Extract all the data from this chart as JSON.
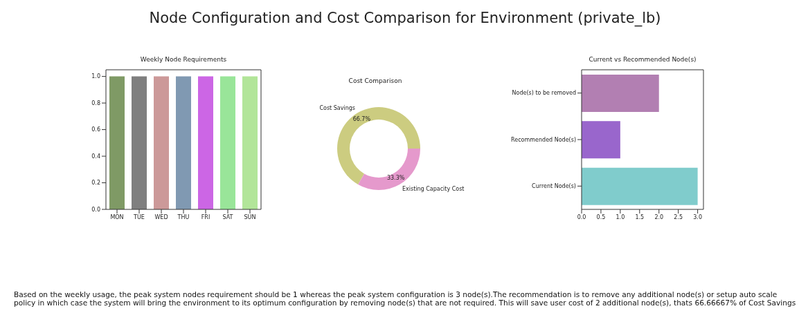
{
  "chart_data": [
    {
      "type": "other",
      "title": "Node Configuration and Cost Comparison for Environment (private_lb)",
      "annotations": [
        "Based on the weekly usage, the peak system nodes requirement should be 1 whereas the peak system configuration is 3 node(s).The recommendation is to remove any additional node(s) or setup auto scale policy in which case the system will bring the environment to its optimum configuration by removing node(s) that are not required. This will save user cost of 2 additional node(s), thats 66.66667% of Cost Savings"
      ]
    },
    {
      "type": "bar",
      "title": "Weekly Node Requirements",
      "categories": [
        "MON",
        "TUE",
        "WED",
        "THU",
        "FRI",
        "SAT",
        "SUN"
      ],
      "values": [
        1,
        1,
        1,
        1,
        1,
        1,
        1
      ],
      "colors": [
        "#7f9a65",
        "#7f7f7f",
        "#cc9999",
        "#8099b2",
        "#cc66e5",
        "#99e599",
        "#b2e599"
      ],
      "ylim": [
        0,
        1.05
      ],
      "yticks": [
        {
          "value": 0,
          "label": "0.0"
        },
        {
          "value": 0.2,
          "label": "0.2"
        },
        {
          "value": 0.4,
          "label": "0.4"
        },
        {
          "value": 0.6,
          "label": "0.6"
        },
        {
          "value": 0.8,
          "label": "0.8"
        },
        {
          "value": 1,
          "label": "1.0"
        }
      ]
    },
    {
      "type": "donut",
      "title": "Cost Comparison",
      "categories": [
        "Cost Savings",
        "Existing Capacity Cost"
      ],
      "values": [
        66.7,
        33.3
      ],
      "colors": [
        "#cccc80",
        "#e599cc"
      ],
      "value_labels": [
        "66.7%",
        "33.3%"
      ]
    },
    {
      "type": "bar",
      "orientation": "horizontal",
      "title": "Current vs Recommended Node(s)",
      "categories": [
        "Node(s) to be removed",
        "Recommended Node(s)",
        "Current Node(s)"
      ],
      "values": [
        2,
        1,
        3
      ],
      "colors": [
        "#b27fb2",
        "#9966cc",
        "#80cccc"
      ],
      "xlim": [
        0,
        3.15
      ],
      "xticks": [
        {
          "value": 0,
          "label": "0.0"
        },
        {
          "value": 0.5,
          "label": "0.5"
        },
        {
          "value": 1,
          "label": "1.0"
        },
        {
          "value": 1.5,
          "label": "1.5"
        },
        {
          "value": 2,
          "label": "2.0"
        },
        {
          "value": 2.5,
          "label": "2.5"
        },
        {
          "value": 3,
          "label": "3.0"
        }
      ]
    }
  ]
}
